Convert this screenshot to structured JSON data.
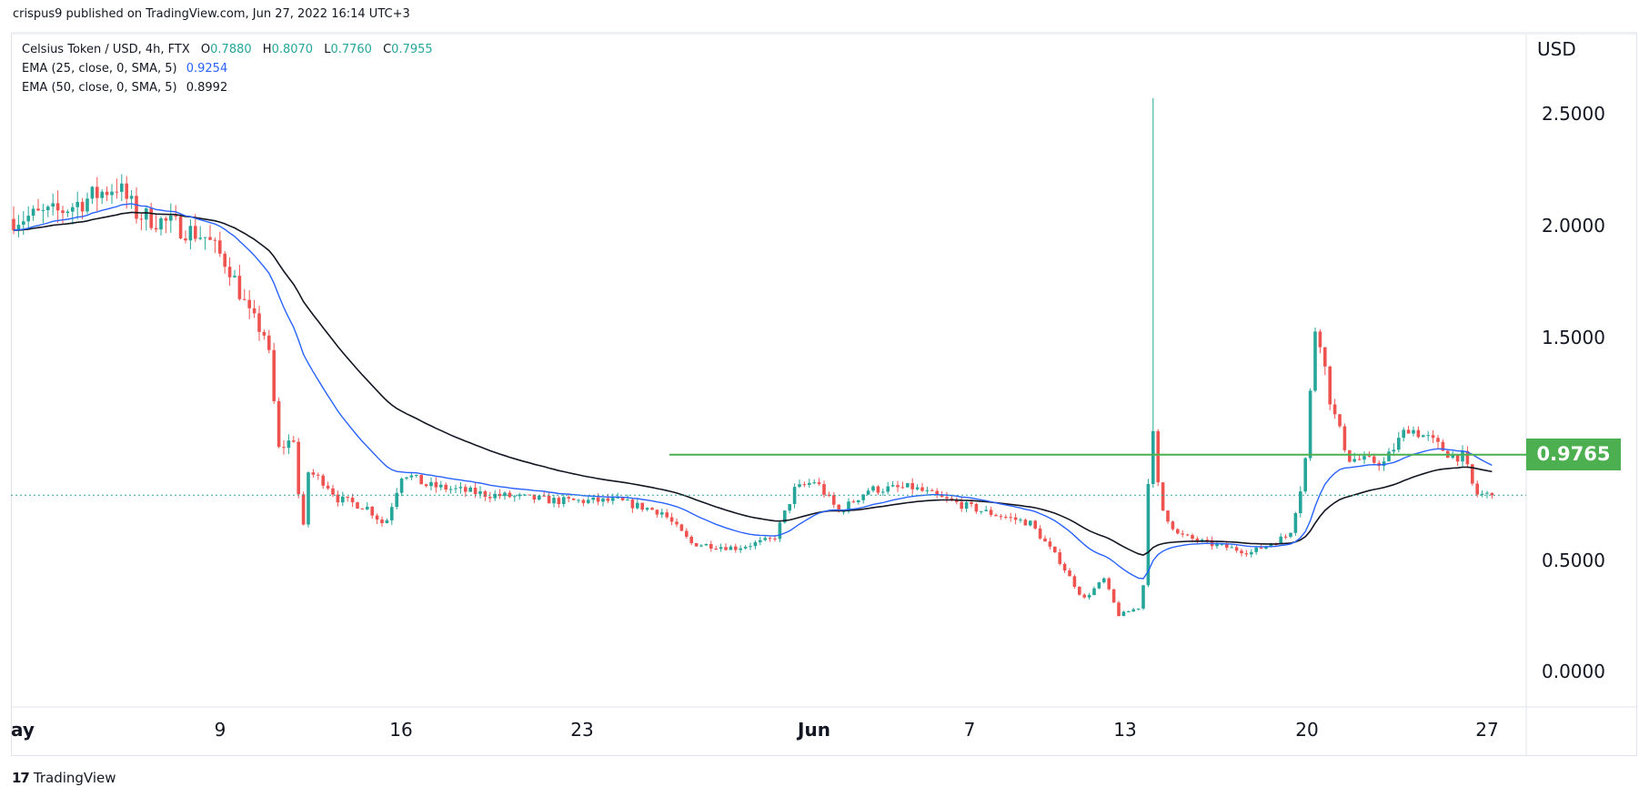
{
  "header": {
    "published": "crispus9 published on TradingView.com, Jun 27, 2022 16:14 UTC+3"
  },
  "legend": {
    "symbol": "Celsius Token / USD, 4h, FTX",
    "o_label": "O",
    "o_value": "0.7880",
    "h_label": "H",
    "h_value": "0.8070",
    "l_label": "L",
    "l_value": "0.7760",
    "c_label": "C",
    "c_value": "0.7955",
    "ema25_label": "EMA (25, close, 0, SMA, 5)",
    "ema25_value": "0.9254",
    "ema50_label": "EMA (50, close, 0, SMA, 5)",
    "ema50_value": "0.8992"
  },
  "price_axis": {
    "currency": "USD",
    "ticks": [
      "2.5000",
      "2.0000",
      "1.5000",
      "0.5000",
      "0.0000"
    ],
    "level_label": "0.9765"
  },
  "time_axis": {
    "ticks": [
      "ay",
      "9",
      "16",
      "23",
      "Jun",
      "7",
      "13",
      "20",
      "27"
    ]
  },
  "footer": {
    "brand": "TradingView",
    "logo_mark": "17"
  },
  "colors": {
    "up": "#26a69a",
    "down": "#ef5350",
    "ema25": "#2962ff",
    "ema50": "#131722",
    "level": "#4caf50",
    "last_price": "#26a69a"
  },
  "chart_data": {
    "type": "candlestick",
    "title": "Celsius Token / USD, 4h, FTX",
    "xlabel": "",
    "ylabel": "USD",
    "ylim": [
      -0.1,
      2.7
    ],
    "yticks": [
      0.0,
      0.5,
      1.5,
      2.0,
      2.5
    ],
    "xticks": [
      "May",
      "9",
      "16",
      "23",
      "Jun",
      "7",
      "13",
      "20",
      "27"
    ],
    "horizontal_level": 0.9765,
    "last_close": 0.7955,
    "path_keypoints": [
      {
        "d": 0,
        "p": 2.03
      },
      {
        "d": 1.5,
        "p": 2.06
      },
      {
        "d": 2.5,
        "p": 2.12
      },
      {
        "d": 3.5,
        "p": 2.18
      },
      {
        "d": 4.2,
        "p": 2.05
      },
      {
        "d": 5.5,
        "p": 2.0
      },
      {
        "d": 6.5,
        "p": 1.95
      },
      {
        "d": 7.3,
        "p": 1.82
      },
      {
        "d": 8.0,
        "p": 1.6
      },
      {
        "d": 8.6,
        "p": 1.5
      },
      {
        "d": 9.0,
        "p": 1.0
      },
      {
        "d": 9.5,
        "p": 1.05
      },
      {
        "d": 9.8,
        "p": 0.6
      },
      {
        "d": 10.0,
        "p": 0.9
      },
      {
        "d": 10.6,
        "p": 0.85
      },
      {
        "d": 11.0,
        "p": 0.78
      },
      {
        "d": 12.0,
        "p": 0.74
      },
      {
        "d": 12.6,
        "p": 0.66
      },
      {
        "d": 13.2,
        "p": 0.9
      },
      {
        "d": 14.0,
        "p": 0.84
      },
      {
        "d": 16.0,
        "p": 0.8
      },
      {
        "d": 18.5,
        "p": 0.77
      },
      {
        "d": 20.5,
        "p": 0.77
      },
      {
        "d": 22.0,
        "p": 0.72
      },
      {
        "d": 23.0,
        "p": 0.58
      },
      {
        "d": 24.5,
        "p": 0.56
      },
      {
        "d": 25.8,
        "p": 0.6
      },
      {
        "d": 26.5,
        "p": 0.82
      },
      {
        "d": 27.2,
        "p": 0.86
      },
      {
        "d": 28.0,
        "p": 0.72
      },
      {
        "d": 29.0,
        "p": 0.82
      },
      {
        "d": 30.5,
        "p": 0.83
      },
      {
        "d": 31.5,
        "p": 0.78
      },
      {
        "d": 33.0,
        "p": 0.72
      },
      {
        "d": 34.5,
        "p": 0.67
      },
      {
        "d": 35.5,
        "p": 0.5
      },
      {
        "d": 36.3,
        "p": 0.33
      },
      {
        "d": 37.0,
        "p": 0.42
      },
      {
        "d": 37.5,
        "p": 0.26
      },
      {
        "d": 38.3,
        "p": 0.3
      },
      {
        "d": 38.6,
        "p": 1.15
      },
      {
        "d": 38.9,
        "p": 0.75
      },
      {
        "d": 39.5,
        "p": 0.62
      },
      {
        "d": 40.5,
        "p": 0.58
      },
      {
        "d": 42.0,
        "p": 0.54
      },
      {
        "d": 43.3,
        "p": 0.62
      },
      {
        "d": 43.8,
        "p": 0.9
      },
      {
        "d": 44.2,
        "p": 1.6
      },
      {
        "d": 44.7,
        "p": 1.2
      },
      {
        "d": 45.3,
        "p": 0.96
      },
      {
        "d": 46.5,
        "p": 0.94
      },
      {
        "d": 47.3,
        "p": 1.1
      },
      {
        "d": 48.0,
        "p": 1.05
      },
      {
        "d": 48.8,
        "p": 0.97
      },
      {
        "d": 49.2,
        "p": 0.97
      },
      {
        "d": 49.6,
        "p": 0.8
      },
      {
        "d": 50.3,
        "p": 0.795
      }
    ],
    "spike": {
      "d": 38.7,
      "high": 2.57
    },
    "ema25_end": 0.9254,
    "ema50_end": 0.8992
  }
}
